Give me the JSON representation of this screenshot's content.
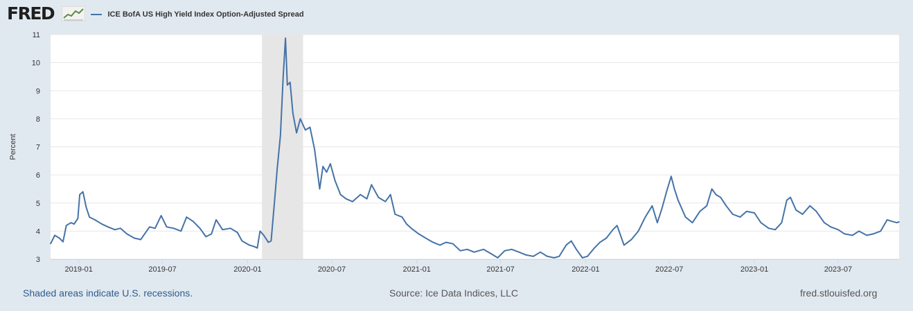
{
  "header": {
    "logo_text": "FRED",
    "legend_label": "ICE BofA US High Yield Index Option-Adjusted Spread"
  },
  "footer": {
    "recession_note": "Shaded areas indicate U.S. recessions.",
    "source": "Source: Ice Data Indices, LLC",
    "site": "fred.stlouisfed.org"
  },
  "colors": {
    "line": "#4572a7",
    "recession": "#e6e6e6",
    "background": "#e1e9f0",
    "plot_bg": "#ffffff"
  },
  "chart_data": {
    "type": "line",
    "title": "ICE BofA US High Yield Index Option-Adjusted Spread",
    "xlabel": "",
    "ylabel": "Percent",
    "ylim": [
      3,
      11
    ],
    "yticks": [
      3,
      4,
      5,
      6,
      7,
      8,
      9,
      10,
      11
    ],
    "grid": true,
    "xlim": [
      "2018-11-01",
      "2023-11-10"
    ],
    "xticks": [
      {
        "date": "2019-01-01",
        "label": "2019-01"
      },
      {
        "date": "2019-07-01",
        "label": "2019-07"
      },
      {
        "date": "2020-01-01",
        "label": "2020-01"
      },
      {
        "date": "2020-07-01",
        "label": "2020-07"
      },
      {
        "date": "2021-01-01",
        "label": "2021-01"
      },
      {
        "date": "2021-07-01",
        "label": "2021-07"
      },
      {
        "date": "2022-01-01",
        "label": "2022-01"
      },
      {
        "date": "2022-07-01",
        "label": "2022-07"
      },
      {
        "date": "2023-01-01",
        "label": "2023-01"
      },
      {
        "date": "2023-07-01",
        "label": "2023-07"
      }
    ],
    "recessions": [
      {
        "start": "2020-02-01",
        "end": "2020-04-30"
      }
    ],
    "series": [
      {
        "name": "ICE BofA US High Yield Index Option-Adjusted Spread",
        "points": [
          [
            "2018-11-01",
            3.55
          ],
          [
            "2018-11-10",
            3.85
          ],
          [
            "2018-11-20",
            3.75
          ],
          [
            "2018-11-28",
            3.62
          ],
          [
            "2018-12-05",
            4.2
          ],
          [
            "2018-12-15",
            4.3
          ],
          [
            "2018-12-22",
            4.25
          ],
          [
            "2018-12-30",
            4.45
          ],
          [
            "2019-01-03",
            5.3
          ],
          [
            "2019-01-10",
            5.4
          ],
          [
            "2019-01-17",
            4.85
          ],
          [
            "2019-01-24",
            4.5
          ],
          [
            "2019-02-05",
            4.4
          ],
          [
            "2019-02-20",
            4.25
          ],
          [
            "2019-03-05",
            4.15
          ],
          [
            "2019-03-20",
            4.05
          ],
          [
            "2019-04-01",
            4.1
          ],
          [
            "2019-04-15",
            3.9
          ],
          [
            "2019-05-01",
            3.75
          ],
          [
            "2019-05-15",
            3.7
          ],
          [
            "2019-06-03",
            4.15
          ],
          [
            "2019-06-15",
            4.1
          ],
          [
            "2019-06-28",
            4.55
          ],
          [
            "2019-07-10",
            4.15
          ],
          [
            "2019-07-25",
            4.1
          ],
          [
            "2019-08-10",
            4.0
          ],
          [
            "2019-08-22",
            4.5
          ],
          [
            "2019-09-05",
            4.35
          ],
          [
            "2019-09-20",
            4.1
          ],
          [
            "2019-10-03",
            3.8
          ],
          [
            "2019-10-15",
            3.9
          ],
          [
            "2019-10-25",
            4.4
          ],
          [
            "2019-11-08",
            4.05
          ],
          [
            "2019-11-25",
            4.1
          ],
          [
            "2019-12-10",
            3.95
          ],
          [
            "2019-12-20",
            3.65
          ],
          [
            "2020-01-05",
            3.5
          ],
          [
            "2020-01-15",
            3.45
          ],
          [
            "2020-01-22",
            3.4
          ],
          [
            "2020-01-28",
            4.0
          ],
          [
            "2020-02-05",
            3.85
          ],
          [
            "2020-02-15",
            3.6
          ],
          [
            "2020-02-21",
            3.65
          ],
          [
            "2020-02-28",
            5.0
          ],
          [
            "2020-03-05",
            6.2
          ],
          [
            "2020-03-12",
            7.4
          ],
          [
            "2020-03-18",
            9.5
          ],
          [
            "2020-03-23",
            10.87
          ],
          [
            "2020-03-27",
            9.2
          ],
          [
            "2020-04-02",
            9.3
          ],
          [
            "2020-04-08",
            8.2
          ],
          [
            "2020-04-16",
            7.5
          ],
          [
            "2020-04-24",
            8.0
          ],
          [
            "2020-05-05",
            7.6
          ],
          [
            "2020-05-15",
            7.7
          ],
          [
            "2020-05-25",
            6.9
          ],
          [
            "2020-06-05",
            5.5
          ],
          [
            "2020-06-12",
            6.3
          ],
          [
            "2020-06-20",
            6.1
          ],
          [
            "2020-06-28",
            6.4
          ],
          [
            "2020-07-08",
            5.8
          ],
          [
            "2020-07-20",
            5.3
          ],
          [
            "2020-08-01",
            5.15
          ],
          [
            "2020-08-15",
            5.05
          ],
          [
            "2020-09-01",
            5.3
          ],
          [
            "2020-09-15",
            5.15
          ],
          [
            "2020-09-25",
            5.65
          ],
          [
            "2020-10-10",
            5.2
          ],
          [
            "2020-10-25",
            5.05
          ],
          [
            "2020-11-05",
            5.3
          ],
          [
            "2020-11-15",
            4.6
          ],
          [
            "2020-11-30",
            4.5
          ],
          [
            "2020-12-10",
            4.25
          ],
          [
            "2020-12-20",
            4.1
          ],
          [
            "2021-01-05",
            3.9
          ],
          [
            "2021-01-20",
            3.75
          ],
          [
            "2021-02-05",
            3.6
          ],
          [
            "2021-02-20",
            3.5
          ],
          [
            "2021-03-05",
            3.6
          ],
          [
            "2021-03-20",
            3.55
          ],
          [
            "2021-04-05",
            3.3
          ],
          [
            "2021-04-20",
            3.35
          ],
          [
            "2021-05-05",
            3.25
          ],
          [
            "2021-05-25",
            3.35
          ],
          [
            "2021-06-10",
            3.2
          ],
          [
            "2021-06-25",
            3.05
          ],
          [
            "2021-07-10",
            3.3
          ],
          [
            "2021-07-25",
            3.35
          ],
          [
            "2021-08-10",
            3.25
          ],
          [
            "2021-08-25",
            3.15
          ],
          [
            "2021-09-10",
            3.1
          ],
          [
            "2021-09-25",
            3.25
          ],
          [
            "2021-10-10",
            3.1
          ],
          [
            "2021-10-25",
            3.05
          ],
          [
            "2021-11-05",
            3.1
          ],
          [
            "2021-11-20",
            3.5
          ],
          [
            "2021-12-01",
            3.65
          ],
          [
            "2021-12-12",
            3.35
          ],
          [
            "2021-12-25",
            3.05
          ],
          [
            "2022-01-05",
            3.1
          ],
          [
            "2022-01-20",
            3.4
          ],
          [
            "2022-02-01",
            3.6
          ],
          [
            "2022-02-15",
            3.75
          ],
          [
            "2022-03-01",
            4.05
          ],
          [
            "2022-03-10",
            4.2
          ],
          [
            "2022-03-25",
            3.5
          ],
          [
            "2022-04-10",
            3.7
          ],
          [
            "2022-04-25",
            4.0
          ],
          [
            "2022-05-10",
            4.5
          ],
          [
            "2022-05-25",
            4.9
          ],
          [
            "2022-06-05",
            4.3
          ],
          [
            "2022-06-15",
            4.8
          ],
          [
            "2022-06-25",
            5.4
          ],
          [
            "2022-07-05",
            5.95
          ],
          [
            "2022-07-12",
            5.5
          ],
          [
            "2022-07-20",
            5.1
          ],
          [
            "2022-08-05",
            4.5
          ],
          [
            "2022-08-20",
            4.3
          ],
          [
            "2022-09-05",
            4.7
          ],
          [
            "2022-09-20",
            4.9
          ],
          [
            "2022-10-01",
            5.5
          ],
          [
            "2022-10-10",
            5.3
          ],
          [
            "2022-10-20",
            5.2
          ],
          [
            "2022-11-01",
            4.9
          ],
          [
            "2022-11-15",
            4.6
          ],
          [
            "2022-12-01",
            4.5
          ],
          [
            "2022-12-15",
            4.7
          ],
          [
            "2023-01-01",
            4.65
          ],
          [
            "2023-01-15",
            4.3
          ],
          [
            "2023-02-01",
            4.1
          ],
          [
            "2023-02-15",
            4.05
          ],
          [
            "2023-03-01",
            4.3
          ],
          [
            "2023-03-12",
            5.1
          ],
          [
            "2023-03-20",
            5.2
          ],
          [
            "2023-04-01",
            4.75
          ],
          [
            "2023-04-15",
            4.6
          ],
          [
            "2023-05-01",
            4.9
          ],
          [
            "2023-05-15",
            4.7
          ],
          [
            "2023-06-01",
            4.3
          ],
          [
            "2023-06-15",
            4.15
          ],
          [
            "2023-07-01",
            4.05
          ],
          [
            "2023-07-15",
            3.9
          ],
          [
            "2023-08-01",
            3.85
          ],
          [
            "2023-08-15",
            4.0
          ],
          [
            "2023-09-01",
            3.85
          ],
          [
            "2023-09-15",
            3.9
          ],
          [
            "2023-10-01",
            4.0
          ],
          [
            "2023-10-15",
            4.4
          ],
          [
            "2023-10-25",
            4.35
          ],
          [
            "2023-11-05",
            4.3
          ],
          [
            "2023-11-10",
            4.33
          ]
        ]
      }
    ]
  }
}
